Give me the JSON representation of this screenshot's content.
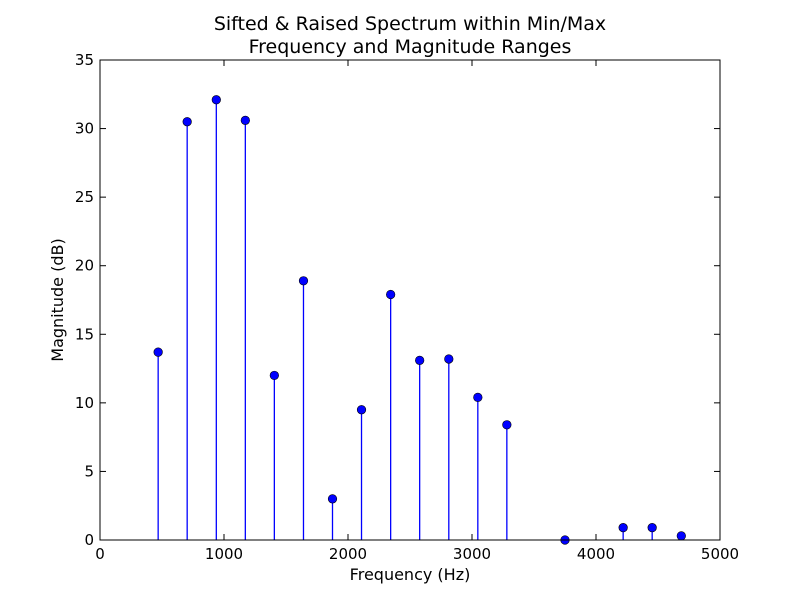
{
  "chart_data": {
    "type": "stem",
    "title_lines": [
      "Sifted & Raised Spectrum within Min/Max",
      "Frequency and Magnitude Ranges"
    ],
    "xlabel": "Frequency (Hz)",
    "ylabel": "Magnitude (dB)",
    "xlim": [
      0,
      5000
    ],
    "ylim": [
      0,
      35
    ],
    "xticks": [
      0,
      1000,
      2000,
      3000,
      4000,
      5000
    ],
    "yticks": [
      0,
      5,
      10,
      15,
      20,
      25,
      30,
      35
    ],
    "grid": false,
    "color": "#0000ff",
    "points": [
      {
        "x": 469,
        "y": 13.7
      },
      {
        "x": 703,
        "y": 30.5
      },
      {
        "x": 938,
        "y": 32.1
      },
      {
        "x": 1172,
        "y": 30.6
      },
      {
        "x": 1406,
        "y": 12.0
      },
      {
        "x": 1641,
        "y": 18.9
      },
      {
        "x": 1875,
        "y": 3.0
      },
      {
        "x": 2109,
        "y": 9.5
      },
      {
        "x": 2344,
        "y": 17.9
      },
      {
        "x": 2578,
        "y": 13.1
      },
      {
        "x": 2813,
        "y": 13.2
      },
      {
        "x": 3047,
        "y": 10.4
      },
      {
        "x": 3281,
        "y": 8.4
      },
      {
        "x": 3750,
        "y": 0.0
      },
      {
        "x": 4219,
        "y": 0.9
      },
      {
        "x": 4453,
        "y": 0.9
      },
      {
        "x": 4688,
        "y": 0.3
      }
    ]
  }
}
